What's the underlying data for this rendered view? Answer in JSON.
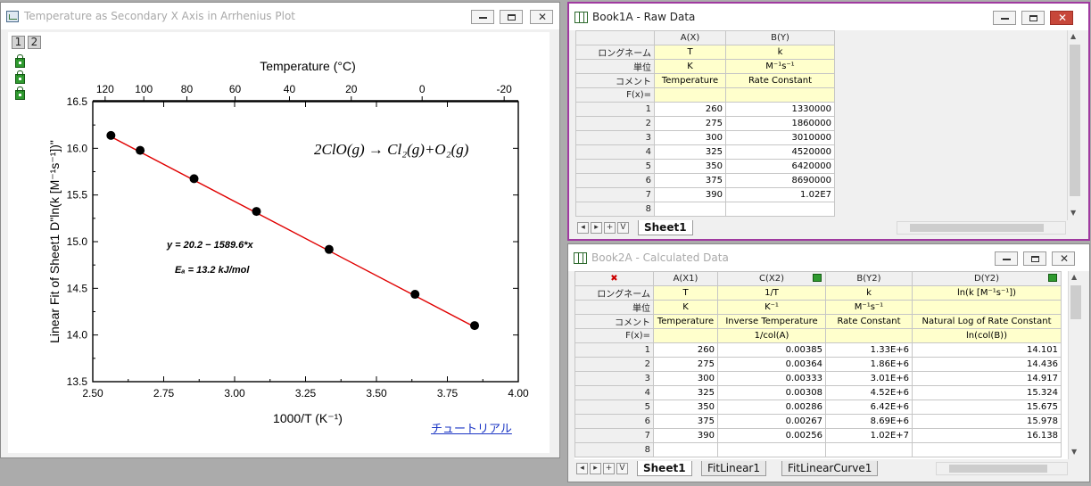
{
  "graph_window": {
    "title": "Temperature as Secondary X Axis in Arrhenius Plot",
    "layer_buttons": [
      "1",
      "2"
    ],
    "link_text": "チュートリアル",
    "equation_reaction": "2ClO(g) → Cl₂(g)+O₂(g)",
    "fit_equation": "y = 20.2 − 1589.6*x",
    "activation_energy": "Eₐ = 13.2 kJ/mol"
  },
  "chart_data": {
    "type": "scatter",
    "xlabel": "1000/T (K⁻¹)",
    "ylabel": "Linear Fit of Sheet1 D\"ln(k [M⁻¹s⁻¹])\"",
    "top_axis_label": "Temperature (°C)",
    "xlim": [
      2.5,
      4.0
    ],
    "ylim": [
      13.5,
      16.5
    ],
    "x_ticks": [
      "2.50",
      "2.75",
      "3.00",
      "3.25",
      "3.50",
      "3.75",
      "4.00"
    ],
    "y_ticks": [
      "13.5",
      "14.0",
      "14.5",
      "15.0",
      "15.5",
      "16.0",
      "16.5"
    ],
    "top_ticks": [
      "120",
      "100",
      "80",
      "60",
      "40",
      "20",
      "0",
      "-20"
    ],
    "top_tick_values_c": [
      120,
      100,
      80,
      60,
      40,
      20,
      0,
      -20
    ],
    "points": [
      {
        "x": 2.564,
        "y": 16.138
      },
      {
        "x": 2.667,
        "y": 15.978
      },
      {
        "x": 2.857,
        "y": 15.675
      },
      {
        "x": 3.077,
        "y": 15.324
      },
      {
        "x": 3.333,
        "y": 14.917
      },
      {
        "x": 3.636,
        "y": 14.436
      },
      {
        "x": 3.846,
        "y": 14.101
      }
    ],
    "fit_line": {
      "intercept": 20.2,
      "slope": -1.5896
    },
    "point_color": "#000000",
    "line_color": "#e00000"
  },
  "book1": {
    "title": "Book1A - Raw Data",
    "row_labels": [
      "ロングネーム",
      "単位",
      "コメント",
      "F(x)="
    ],
    "columns": [
      {
        "header": "A(X)",
        "meta": [
          "T",
          "K",
          "Temperature",
          ""
        ]
      },
      {
        "header": "B(Y)",
        "meta": [
          "k",
          "M⁻¹s⁻¹",
          "Rate Constant",
          ""
        ]
      }
    ],
    "rows": [
      [
        "1",
        "260",
        "1330000"
      ],
      [
        "2",
        "275",
        "1860000"
      ],
      [
        "3",
        "300",
        "3010000"
      ],
      [
        "4",
        "325",
        "4520000"
      ],
      [
        "5",
        "350",
        "6420000"
      ],
      [
        "6",
        "375",
        "8690000"
      ],
      [
        "7",
        "390",
        "1.02E7"
      ],
      [
        "8",
        "",
        ""
      ]
    ],
    "tabs": [
      "Sheet1"
    ]
  },
  "book2": {
    "title": "Book2A - Calculated Data",
    "row_labels": [
      "ロングネーム",
      "単位",
      "コメント",
      "F(x)="
    ],
    "columns": [
      {
        "header": "A(X1)",
        "meta": [
          "T",
          "K",
          "Temperature",
          ""
        ]
      },
      {
        "header": "C(X2)",
        "meta": [
          "1/T",
          "K⁻¹",
          "Inverse Temperature",
          "1/col(A)"
        ]
      },
      {
        "header": "B(Y2)",
        "meta": [
          "k",
          "M⁻¹s⁻¹",
          "Rate Constant",
          ""
        ]
      },
      {
        "header": "D(Y2)",
        "meta": [
          "ln(k [M⁻¹s⁻¹])",
          "",
          "Natural Log of Rate Constant",
          "ln(col(B))"
        ]
      }
    ],
    "rows": [
      [
        "1",
        "260",
        "0.00385",
        "1.33E+6",
        "14.101"
      ],
      [
        "2",
        "275",
        "0.00364",
        "1.86E+6",
        "14.436"
      ],
      [
        "3",
        "300",
        "0.00333",
        "3.01E+6",
        "14.917"
      ],
      [
        "4",
        "325",
        "0.00308",
        "4.52E+6",
        "15.324"
      ],
      [
        "5",
        "350",
        "0.00286",
        "6.42E+6",
        "15.675"
      ],
      [
        "6",
        "375",
        "0.00267",
        "8.69E+6",
        "15.978"
      ],
      [
        "7",
        "390",
        "0.00256",
        "1.02E+7",
        "16.138"
      ],
      [
        "8",
        "",
        "",
        "",
        ""
      ]
    ],
    "tabs": [
      "Sheet1",
      "FitLinear1",
      "FitLinearCurve1"
    ]
  }
}
